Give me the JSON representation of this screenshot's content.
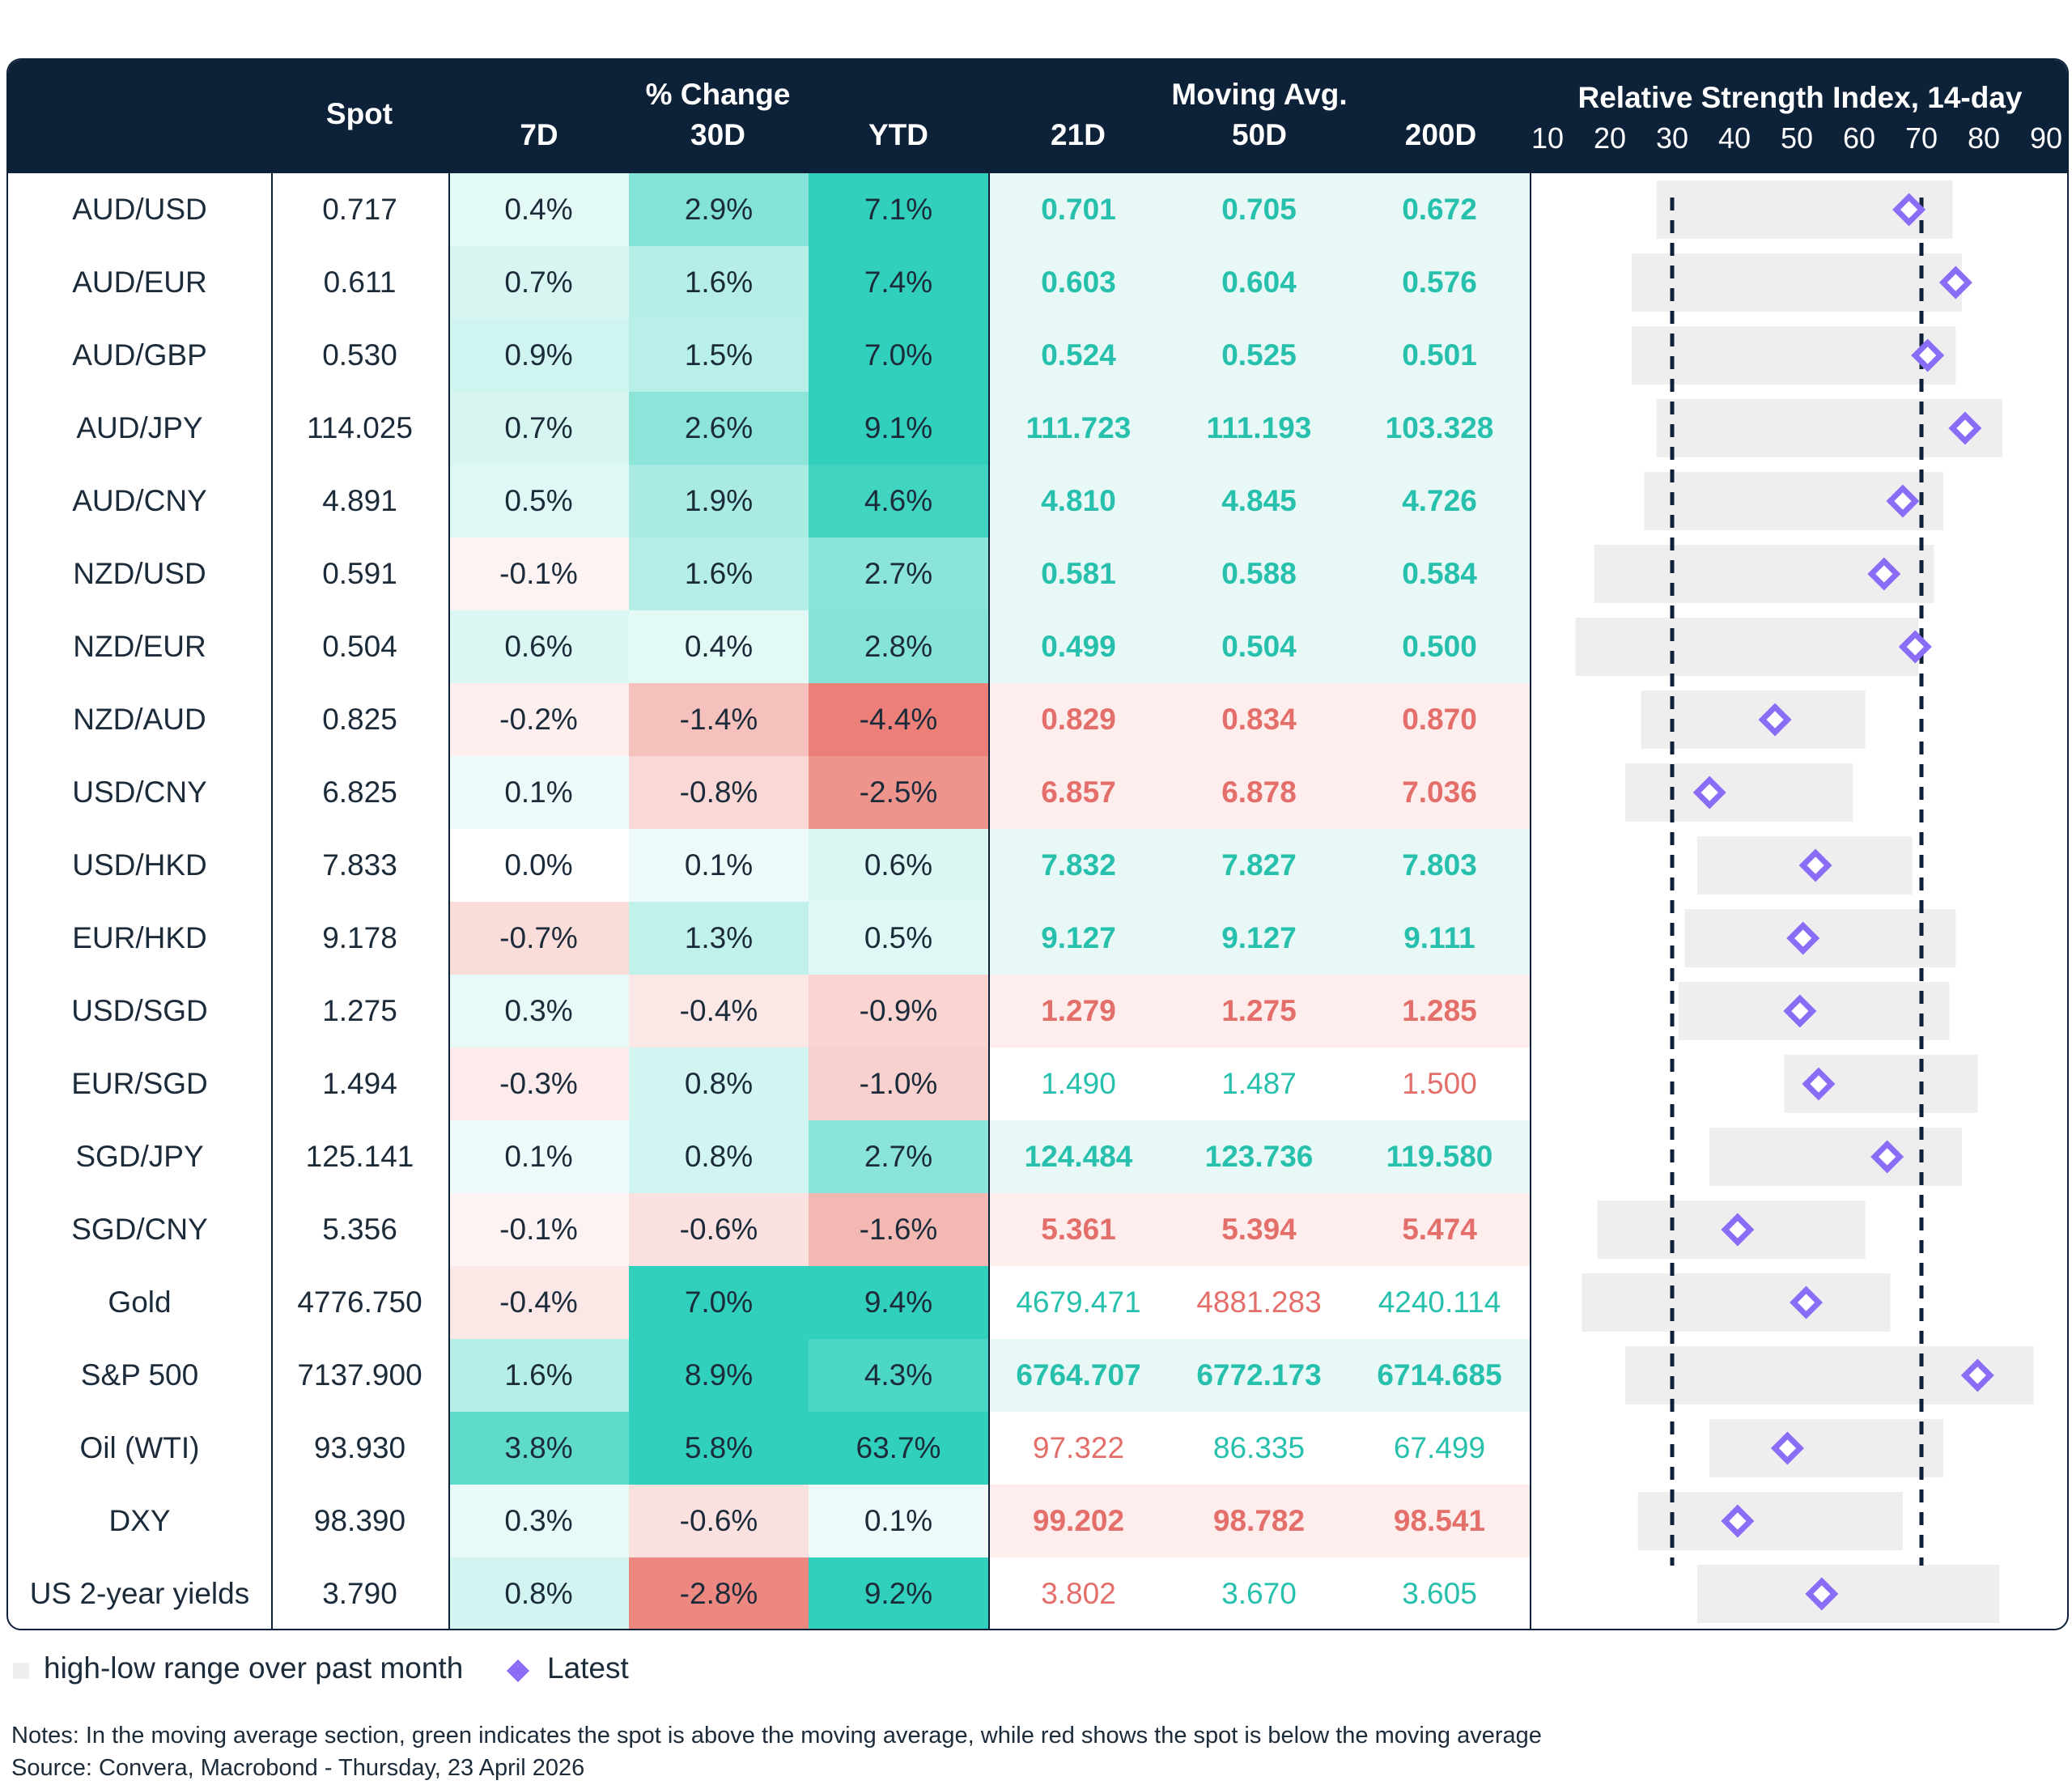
{
  "chart_data": {
    "type": "table",
    "headers": {
      "spot": "Spot",
      "pct_group": "% Change",
      "pct_cols": [
        "7D",
        "30D",
        "YTD"
      ],
      "ma_group": "Moving Avg.",
      "ma_cols": [
        "21D",
        "50D",
        "200D"
      ],
      "rsi_title": "Relative Strength Index, 14-day",
      "rsi_ticks": [
        "10",
        "20",
        "30",
        "40",
        "50",
        "60",
        "70",
        "80",
        "90"
      ]
    },
    "rsi_axis": {
      "min": 10,
      "max": 90,
      "dashed_lines": [
        30,
        70
      ]
    },
    "rows": [
      {
        "name": "AUD/USD",
        "spot": "0.717",
        "pct": [
          "0.4%",
          "2.9%",
          "7.1%"
        ],
        "ma": [
          "0.701",
          "0.705",
          "0.672"
        ],
        "ma_sign": [
          "up",
          "up",
          "up"
        ],
        "ma_bold": true,
        "rsi_low": 27.5,
        "rsi_high": 75,
        "rsi": 68
      },
      {
        "name": "AUD/EUR",
        "spot": "0.611",
        "pct": [
          "0.7%",
          "1.6%",
          "7.4%"
        ],
        "ma": [
          "0.603",
          "0.604",
          "0.576"
        ],
        "ma_sign": [
          "up",
          "up",
          "up"
        ],
        "ma_bold": true,
        "rsi_low": 23.5,
        "rsi_high": 76.5,
        "rsi": 75.5
      },
      {
        "name": "AUD/GBP",
        "spot": "0.530",
        "pct": [
          "0.9%",
          "1.5%",
          "7.0%"
        ],
        "ma": [
          "0.524",
          "0.525",
          "0.501"
        ],
        "ma_sign": [
          "up",
          "up",
          "up"
        ],
        "ma_bold": true,
        "rsi_low": 23.5,
        "rsi_high": 75.5,
        "rsi": 71
      },
      {
        "name": "AUD/JPY",
        "spot": "114.025",
        "pct": [
          "0.7%",
          "2.6%",
          "9.1%"
        ],
        "ma": [
          "111.723",
          "111.193",
          "103.328"
        ],
        "ma_sign": [
          "up",
          "up",
          "up"
        ],
        "ma_bold": true,
        "rsi_low": 27.5,
        "rsi_high": 83,
        "rsi": 77
      },
      {
        "name": "AUD/CNY",
        "spot": "4.891",
        "pct": [
          "0.5%",
          "1.9%",
          "4.6%"
        ],
        "ma": [
          "4.810",
          "4.845",
          "4.726"
        ],
        "ma_sign": [
          "up",
          "up",
          "up"
        ],
        "ma_bold": true,
        "rsi_low": 25.5,
        "rsi_high": 73.5,
        "rsi": 67
      },
      {
        "name": "NZD/USD",
        "spot": "0.591",
        "pct": [
          "-0.1%",
          "1.6%",
          "2.7%"
        ],
        "ma": [
          "0.581",
          "0.588",
          "0.584"
        ],
        "ma_sign": [
          "up",
          "up",
          "up"
        ],
        "ma_bold": true,
        "rsi_low": 17.5,
        "rsi_high": 72,
        "rsi": 64
      },
      {
        "name": "NZD/EUR",
        "spot": "0.504",
        "pct": [
          "0.6%",
          "0.4%",
          "2.8%"
        ],
        "ma": [
          "0.499",
          "0.504",
          "0.500"
        ],
        "ma_sign": [
          "up",
          "up",
          "up"
        ],
        "ma_bold": true,
        "rsi_low": 14.5,
        "rsi_high": 69.5,
        "rsi": 69
      },
      {
        "name": "NZD/AUD",
        "spot": "0.825",
        "pct": [
          "-0.2%",
          "-1.4%",
          "-4.4%"
        ],
        "ma": [
          "0.829",
          "0.834",
          "0.870"
        ],
        "ma_sign": [
          "down",
          "down",
          "down"
        ],
        "ma_bold": true,
        "rsi_low": 25,
        "rsi_high": 61,
        "rsi": 46.5
      },
      {
        "name": "USD/CNY",
        "spot": "6.825",
        "pct": [
          "0.1%",
          "-0.8%",
          "-2.5%"
        ],
        "ma": [
          "6.857",
          "6.878",
          "7.036"
        ],
        "ma_sign": [
          "down",
          "down",
          "down"
        ],
        "ma_bold": true,
        "rsi_low": 22.5,
        "rsi_high": 59,
        "rsi": 36
      },
      {
        "name": "USD/HKD",
        "spot": "7.833",
        "pct": [
          "0.0%",
          "0.1%",
          "0.6%"
        ],
        "ma": [
          "7.832",
          "7.827",
          "7.803"
        ],
        "ma_sign": [
          "up",
          "up",
          "up"
        ],
        "ma_bold": true,
        "rsi_low": 34,
        "rsi_high": 68.5,
        "rsi": 53
      },
      {
        "name": "EUR/HKD",
        "spot": "9.178",
        "pct": [
          "-0.7%",
          "1.3%",
          "0.5%"
        ],
        "ma": [
          "9.127",
          "9.127",
          "9.111"
        ],
        "ma_sign": [
          "up",
          "up",
          "up"
        ],
        "ma_bold": true,
        "rsi_low": 32,
        "rsi_high": 75.5,
        "rsi": 51
      },
      {
        "name": "USD/SGD",
        "spot": "1.275",
        "pct": [
          "0.3%",
          "-0.4%",
          "-0.9%"
        ],
        "ma": [
          "1.279",
          "1.275",
          "1.285"
        ],
        "ma_sign": [
          "down",
          "down",
          "down"
        ],
        "ma_bold": true,
        "rsi_low": 31,
        "rsi_high": 74.5,
        "rsi": 50.5
      },
      {
        "name": "EUR/SGD",
        "spot": "1.494",
        "pct": [
          "-0.3%",
          "0.8%",
          "-1.0%"
        ],
        "ma": [
          "1.490",
          "1.487",
          "1.500"
        ],
        "ma_sign": [
          "up",
          "up",
          "down"
        ],
        "ma_bold": false,
        "rsi_low": 48,
        "rsi_high": 79,
        "rsi": 53.5
      },
      {
        "name": "SGD/JPY",
        "spot": "125.141",
        "pct": [
          "0.1%",
          "0.8%",
          "2.7%"
        ],
        "ma": [
          "124.484",
          "123.736",
          "119.580"
        ],
        "ma_sign": [
          "up",
          "up",
          "up"
        ],
        "ma_bold": true,
        "rsi_low": 36,
        "rsi_high": 76.5,
        "rsi": 64.5
      },
      {
        "name": "SGD/CNY",
        "spot": "5.356",
        "pct": [
          "-0.1%",
          "-0.6%",
          "-1.6%"
        ],
        "ma": [
          "5.361",
          "5.394",
          "5.474"
        ],
        "ma_sign": [
          "down",
          "down",
          "down"
        ],
        "ma_bold": true,
        "rsi_low": 18,
        "rsi_high": 61,
        "rsi": 40.5
      },
      {
        "name": "Gold",
        "spot": "4776.750",
        "pct": [
          "-0.4%",
          "7.0%",
          "9.4%"
        ],
        "ma": [
          "4679.471",
          "4881.283",
          "4240.114"
        ],
        "ma_sign": [
          "up",
          "down",
          "up"
        ],
        "ma_bold": false,
        "rsi_low": 15.5,
        "rsi_high": 65,
        "rsi": 51.5
      },
      {
        "name": "S&P 500",
        "spot": "7137.900",
        "pct": [
          "1.6%",
          "8.9%",
          "4.3%"
        ],
        "ma": [
          "6764.707",
          "6772.173",
          "6714.685"
        ],
        "ma_sign": [
          "up",
          "up",
          "up"
        ],
        "ma_bold": true,
        "rsi_low": 22.5,
        "rsi_high": 88,
        "rsi": 79
      },
      {
        "name": "Oil (WTI)",
        "spot": "93.930",
        "pct": [
          "3.8%",
          "5.8%",
          "63.7%"
        ],
        "ma": [
          "97.322",
          "86.335",
          "67.499"
        ],
        "ma_sign": [
          "down",
          "up",
          "up"
        ],
        "ma_bold": false,
        "rsi_low": 36,
        "rsi_high": 73.5,
        "rsi": 48.5
      },
      {
        "name": "DXY",
        "spot": "98.390",
        "pct": [
          "0.3%",
          "-0.6%",
          "0.1%"
        ],
        "ma": [
          "99.202",
          "98.782",
          "98.541"
        ],
        "ma_sign": [
          "down",
          "down",
          "down"
        ],
        "ma_bold": true,
        "rsi_low": 24.5,
        "rsi_high": 67,
        "rsi": 40.5
      },
      {
        "name": "US 2-year yields",
        "spot": "3.790",
        "pct": [
          "0.8%",
          "-2.8%",
          "9.2%"
        ],
        "ma": [
          "3.802",
          "3.670",
          "3.605"
        ],
        "ma_sign": [
          "down",
          "up",
          "up"
        ],
        "ma_bold": false,
        "rsi_low": 34,
        "rsi_high": 82.5,
        "rsi": 54
      }
    ],
    "legend": {
      "range_label": "high-low range over past month",
      "latest_label": "Latest"
    },
    "notes": "Notes: In the moving average section, green indicates the spot is above the moving average, while red shows the spot is below the moving average",
    "source": "Source: Convera, Macrobond - Thursday, 23 April 2026"
  },
  "colors": {
    "header_bg": "#0d2138",
    "ma_up_text": "#26c0ad",
    "ma_down_text": "#e46f6a",
    "ma_up_bg": "#e8f8f6",
    "ma_down_bg": "#fdeeed",
    "rsi_range": "#eeeeee",
    "rsi_marker": "#8b6cf6"
  }
}
